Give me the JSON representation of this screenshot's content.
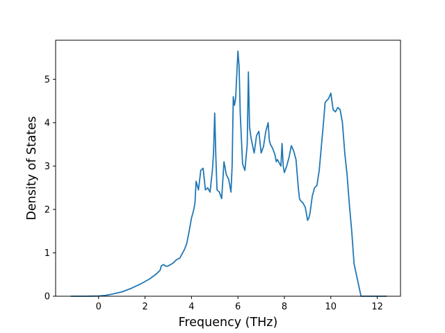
{
  "chart_data": {
    "type": "line",
    "title": "",
    "xlabel": "Frequency (THz)",
    "ylabel": "Density of States",
    "xlim": [
      -1.85,
      13.0
    ],
    "ylim": [
      0,
      5.9
    ],
    "grid": false,
    "legend": "none",
    "line_color": "#1f77b4",
    "xticks": [
      0,
      2,
      4,
      6,
      8,
      10,
      12
    ],
    "yticks": [
      0,
      1,
      2,
      3,
      4,
      5
    ],
    "series": [
      {
        "x": [
          -1.2,
          -0.6,
          0.0,
          0.3,
          0.6,
          1.0,
          1.4,
          1.8,
          2.2,
          2.5,
          2.65,
          2.7,
          2.8,
          2.9,
          3.0,
          3.2,
          3.35,
          3.5,
          3.6,
          3.7,
          3.8,
          3.9,
          4.0,
          4.1,
          4.15,
          4.2,
          4.3,
          4.4,
          4.5,
          4.6,
          4.7,
          4.8,
          4.9,
          4.95,
          5.0,
          5.05,
          5.1,
          5.2,
          5.3,
          5.4,
          5.45,
          5.5,
          5.6,
          5.7,
          5.75,
          5.8,
          5.85,
          5.9,
          5.95,
          6.0,
          6.05,
          6.1,
          6.2,
          6.3,
          6.4,
          6.45,
          6.5,
          6.55,
          6.6,
          6.7,
          6.8,
          6.9,
          7.0,
          7.1,
          7.2,
          7.3,
          7.35,
          7.4,
          7.5,
          7.6,
          7.65,
          7.7,
          7.8,
          7.85,
          7.9,
          7.95,
          8.0,
          8.1,
          8.2,
          8.3,
          8.4,
          8.5,
          8.6,
          8.65,
          8.7,
          8.8,
          8.9,
          9.0,
          9.05,
          9.1,
          9.15,
          9.2,
          9.3,
          9.4,
          9.5,
          9.6,
          9.7,
          9.75,
          9.8,
          9.9,
          10.0,
          10.1,
          10.2,
          10.3,
          10.4,
          10.5,
          10.6,
          10.7,
          10.8,
          10.9,
          11.0,
          11.1,
          11.2,
          11.3,
          11.5,
          12.0,
          12.4
        ],
        "y": [
          0,
          0,
          0.005,
          0.02,
          0.05,
          0.1,
          0.18,
          0.28,
          0.4,
          0.52,
          0.6,
          0.7,
          0.73,
          0.69,
          0.7,
          0.76,
          0.84,
          0.88,
          0.98,
          1.08,
          1.22,
          1.5,
          1.8,
          2.0,
          2.15,
          2.65,
          2.45,
          2.9,
          2.95,
          2.45,
          2.5,
          2.4,
          2.9,
          3.3,
          4.22,
          3.2,
          2.45,
          2.4,
          2.25,
          3.1,
          2.95,
          2.8,
          2.7,
          2.4,
          3.0,
          4.6,
          4.4,
          4.55,
          5.1,
          5.65,
          5.3,
          4.2,
          3.05,
          2.9,
          3.5,
          5.17,
          3.9,
          3.7,
          3.55,
          3.3,
          3.7,
          3.8,
          3.3,
          3.45,
          3.8,
          4.0,
          3.6,
          3.5,
          3.4,
          3.25,
          3.1,
          3.15,
          3.05,
          3.0,
          3.52,
          3.0,
          2.85,
          3.0,
          3.2,
          3.47,
          3.35,
          3.15,
          2.5,
          2.25,
          2.2,
          2.15,
          2.05,
          1.75,
          1.8,
          1.9,
          2.1,
          2.3,
          2.5,
          2.55,
          2.9,
          3.5,
          4.1,
          4.45,
          4.5,
          4.55,
          4.68,
          4.3,
          4.25,
          4.35,
          4.3,
          4.0,
          3.3,
          2.8,
          2.1,
          1.5,
          0.75,
          0.5,
          0.25,
          0.0,
          0.0,
          0.0,
          0.0
        ]
      }
    ]
  }
}
